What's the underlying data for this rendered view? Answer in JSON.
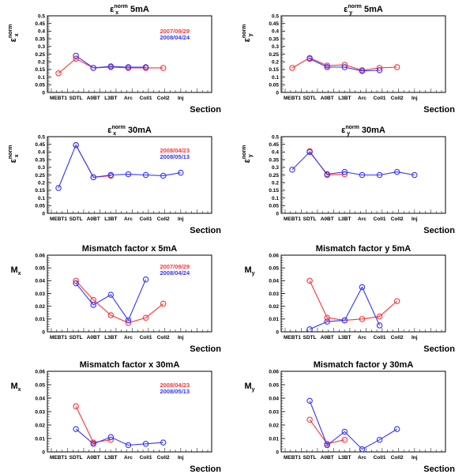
{
  "chart_data": [
    {
      "type": "line",
      "title": "ε_x^norm 5mA",
      "ylabel": "ε_x^norm",
      "xlabel": "Section",
      "categories": [
        "MEBT1",
        "SDTL",
        "A0BT",
        "L3BT",
        "Arc",
        "Coll1",
        "Coll2",
        "Inj"
      ],
      "ylim": [
        0,
        0.5
      ],
      "yticks": [
        0,
        0.05,
        0.1,
        0.15,
        0.2,
        0.25,
        0.3,
        0.35,
        0.4,
        0.45,
        0.5
      ],
      "series": [
        {
          "name": "2007/09/29",
          "color": "#ff3333",
          "values": [
            0.125,
            0.22,
            0.16,
            0.165,
            0.16,
            0.16,
            0.16,
            null
          ]
        },
        {
          "name": "2008/04/24",
          "color": "#3333ff",
          "values": [
            null,
            0.24,
            0.16,
            0.17,
            0.165,
            0.165,
            null,
            null
          ]
        }
      ]
    },
    {
      "type": "line",
      "title": "ε_y^norm 5mA",
      "ylabel": "ε_y^norm",
      "xlabel": "Section",
      "categories": [
        "MEBT1",
        "SDTL",
        "A0BT",
        "L3BT",
        "Arc",
        "Coll1",
        "Coll2",
        "Inj"
      ],
      "ylim": [
        0,
        0.5
      ],
      "yticks": [
        0,
        0.05,
        0.1,
        0.15,
        0.2,
        0.25,
        0.3,
        0.35,
        0.4,
        0.45,
        0.5
      ],
      "series": [
        {
          "name": "",
          "color": "#ff3333",
          "values": [
            0.16,
            0.225,
            0.175,
            0.18,
            0.145,
            0.16,
            0.165,
            null
          ]
        },
        {
          "name": "",
          "color": "#3333ff",
          "values": [
            null,
            0.22,
            0.165,
            0.165,
            0.14,
            0.145,
            null,
            null
          ]
        }
      ]
    },
    {
      "type": "line",
      "title": "ε_x^norm 30mA",
      "ylabel": "ε_x^norm",
      "xlabel": "Section",
      "categories": [
        "MEBT1",
        "SDTL",
        "A0BT",
        "L3BT",
        "Arc",
        "Coll1",
        "Coll2",
        "Inj"
      ],
      "ylim": [
        0,
        0.5
      ],
      "yticks": [
        0,
        0.05,
        0.1,
        0.15,
        0.2,
        0.25,
        0.3,
        0.35,
        0.4,
        0.45,
        0.5
      ],
      "series": [
        {
          "name": "2008/04/23",
          "color": "#ff3333",
          "values": [
            null,
            0.445,
            0.235,
            0.245,
            null,
            null,
            null,
            null
          ]
        },
        {
          "name": "2008/05/13",
          "color": "#3333ff",
          "values": [
            0.165,
            0.445,
            0.235,
            0.25,
            0.255,
            0.25,
            0.245,
            0.265
          ]
        }
      ]
    },
    {
      "type": "line",
      "title": "ε_y^norm 30mA",
      "ylabel": "ε_y^norm",
      "xlabel": "Section",
      "categories": [
        "MEBT1",
        "SDTL",
        "A0BT",
        "L3BT",
        "Arc",
        "Coll1",
        "Coll2",
        "Inj"
      ],
      "ylim": [
        0,
        0.5
      ],
      "yticks": [
        0,
        0.05,
        0.1,
        0.15,
        0.2,
        0.25,
        0.3,
        0.35,
        0.4,
        0.45,
        0.5
      ],
      "series": [
        {
          "name": "",
          "color": "#ff3333",
          "values": [
            null,
            0.405,
            0.25,
            0.255,
            null,
            null,
            null,
            null
          ]
        },
        {
          "name": "",
          "color": "#3333ff",
          "values": [
            0.285,
            0.4,
            0.255,
            0.27,
            0.25,
            0.25,
            0.27,
            0.25
          ]
        }
      ]
    },
    {
      "type": "line",
      "title": "Mismatch factor x 5mA",
      "ylabel": "M_x",
      "xlabel": "Section",
      "categories": [
        "MEBT1",
        "SDTL",
        "A0BT",
        "L3BT",
        "Arc",
        "Coll1",
        "Coll2",
        "Inj"
      ],
      "ylim": [
        0,
        0.06
      ],
      "yticks": [
        0,
        0.01,
        0.02,
        0.03,
        0.04,
        0.05,
        0.06
      ],
      "series": [
        {
          "name": "2007/09/29",
          "color": "#ff3333",
          "values": [
            null,
            0.04,
            0.025,
            0.013,
            0.007,
            0.011,
            0.022,
            null
          ]
        },
        {
          "name": "2008/04/24",
          "color": "#3333ff",
          "values": [
            null,
            0.038,
            0.021,
            0.029,
            0.009,
            0.041,
            null,
            null
          ]
        }
      ]
    },
    {
      "type": "line",
      "title": "Mismatch factor y 5mA",
      "ylabel": "M_y",
      "xlabel": "Section",
      "categories": [
        "MEBT1",
        "SDTL",
        "A0BT",
        "L3BT",
        "Arc",
        "Coll1",
        "Coll2",
        "Inj"
      ],
      "ylim": [
        0,
        0.06
      ],
      "yticks": [
        0,
        0.01,
        0.02,
        0.03,
        0.04,
        0.05,
        0.06
      ],
      "series": [
        {
          "name": "",
          "color": "#ff3333",
          "values": [
            null,
            0.04,
            0.011,
            0.009,
            0.01,
            0.012,
            0.024,
            null
          ]
        },
        {
          "name": "",
          "color": "#3333ff",
          "values": [
            null,
            0.002,
            0.008,
            0.009,
            0.035,
            0.005,
            null,
            null
          ]
        }
      ]
    },
    {
      "type": "line",
      "title": "Mismatch factor x 30mA",
      "ylabel": "M_x",
      "xlabel": "Section",
      "categories": [
        "MEBT1",
        "SDTL",
        "A0BT",
        "L3BT",
        "Arc",
        "Coll1",
        "Coll2",
        "Inj"
      ],
      "ylim": [
        0,
        0.06
      ],
      "yticks": [
        0,
        0.01,
        0.02,
        0.03,
        0.04,
        0.05,
        0.06
      ],
      "series": [
        {
          "name": "2008/04/23",
          "color": "#ff3333",
          "values": [
            null,
            0.034,
            0.007,
            0.009,
            null,
            null,
            null,
            null
          ]
        },
        {
          "name": "2008/05/13",
          "color": "#3333ff",
          "values": [
            null,
            0.017,
            0.006,
            0.011,
            0.005,
            0.006,
            0.007,
            null
          ]
        }
      ]
    },
    {
      "type": "line",
      "title": "Mismatch factor y 30mA",
      "ylabel": "M_y",
      "xlabel": "Section",
      "categories": [
        "MEBT1",
        "SDTL",
        "A0BT",
        "L3BT",
        "Arc",
        "Coll1",
        "Coll2",
        "Inj"
      ],
      "ylim": [
        0,
        0.06
      ],
      "yticks": [
        0,
        0.01,
        0.02,
        0.03,
        0.04,
        0.05,
        0.06
      ],
      "series": [
        {
          "name": "",
          "color": "#ff3333",
          "values": [
            null,
            0.024,
            0.006,
            0.009,
            null,
            null,
            null,
            null
          ]
        },
        {
          "name": "",
          "color": "#3333ff",
          "values": [
            null,
            0.038,
            0.005,
            0.015,
            0.002,
            0.009,
            0.017,
            null
          ]
        }
      ]
    }
  ]
}
